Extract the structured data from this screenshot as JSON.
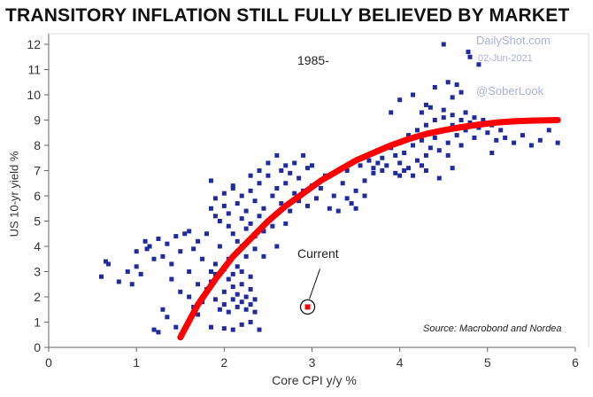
{
  "title": "TRANSITORY INFLATION STILL FULLY BELIEVED BY MARKET",
  "watermark": {
    "site": "DailyShot.com",
    "date": "02-Jun-2021",
    "handle": "@SoberLook"
  },
  "colors": {
    "points": "#1f2b9e",
    "curve": "#ff0000",
    "current": "#ff0000",
    "axis": "#666666"
  },
  "chart_data": {
    "type": "scatter",
    "xlabel": "Core CPI y/y %",
    "ylabel": "US 10-yr yield %",
    "xlim": [
      0,
      6
    ],
    "ylim": [
      0,
      12
    ],
    "x_ticks": [
      0,
      1,
      2,
      3,
      4,
      5,
      6
    ],
    "y_ticks": [
      0,
      1,
      2,
      3,
      4,
      5,
      6,
      7,
      8,
      9,
      10,
      11,
      12
    ],
    "grid": false,
    "period_label": "1985-",
    "source": "Source: Macrobond and Nordea",
    "current": {
      "label": "Current",
      "x": 2.95,
      "y": 1.6
    },
    "fit_curve": [
      [
        1.5,
        0.4
      ],
      [
        1.7,
        1.7
      ],
      [
        1.9,
        2.7
      ],
      [
        2.1,
        3.6
      ],
      [
        2.3,
        4.3
      ],
      [
        2.5,
        5.0
      ],
      [
        2.7,
        5.6
      ],
      [
        2.9,
        6.1
      ],
      [
        3.1,
        6.6
      ],
      [
        3.3,
        7.0
      ],
      [
        3.5,
        7.4
      ],
      [
        3.7,
        7.7
      ],
      [
        3.9,
        8.0
      ],
      [
        4.1,
        8.25
      ],
      [
        4.3,
        8.45
      ],
      [
        4.5,
        8.6
      ],
      [
        4.7,
        8.72
      ],
      [
        4.9,
        8.82
      ],
      [
        5.1,
        8.9
      ],
      [
        5.3,
        8.95
      ],
      [
        5.5,
        8.98
      ],
      [
        5.8,
        9.0
      ]
    ],
    "points": [
      [
        0.6,
        2.8
      ],
      [
        0.65,
        3.4
      ],
      [
        0.68,
        3.3
      ],
      [
        0.8,
        2.6
      ],
      [
        0.9,
        3.0
      ],
      [
        0.95,
        2.5
      ],
      [
        1.0,
        3.2
      ],
      [
        1.0,
        3.8
      ],
      [
        1.05,
        2.9
      ],
      [
        1.1,
        4.2
      ],
      [
        1.12,
        3.9
      ],
      [
        1.15,
        4.0
      ],
      [
        1.2,
        3.5
      ],
      [
        1.25,
        4.3
      ],
      [
        1.3,
        3.6
      ],
      [
        1.35,
        4.1
      ],
      [
        1.4,
        3.3
      ],
      [
        1.45,
        4.4
      ],
      [
        1.5,
        3.8
      ],
      [
        1.55,
        4.5
      ],
      [
        1.6,
        4.6
      ],
      [
        1.65,
        3.9
      ],
      [
        1.7,
        4.2
      ],
      [
        1.4,
        2.7
      ],
      [
        1.5,
        2.2
      ],
      [
        1.3,
        1.5
      ],
      [
        1.35,
        1.2
      ],
      [
        1.45,
        0.8
      ],
      [
        1.25,
        0.6
      ],
      [
        1.2,
        0.7
      ],
      [
        1.6,
        3.0
      ],
      [
        1.7,
        2.5
      ],
      [
        1.75,
        3.5
      ],
      [
        1.8,
        4.5
      ],
      [
        1.85,
        3.0
      ],
      [
        1.9,
        5.2
      ],
      [
        1.95,
        4.0
      ],
      [
        1.6,
        2.0
      ],
      [
        1.65,
        1.6
      ],
      [
        1.7,
        1.3
      ],
      [
        1.75,
        1.8
      ],
      [
        1.8,
        2.3
      ],
      [
        1.85,
        2.6
      ],
      [
        1.9,
        1.9
      ],
      [
        1.9,
        2.9
      ],
      [
        1.95,
        1.5
      ],
      [
        2.0,
        2.2
      ],
      [
        2.0,
        1.7
      ],
      [
        2.05,
        1.4
      ],
      [
        2.05,
        2.7
      ],
      [
        2.1,
        1.9
      ],
      [
        2.1,
        2.4
      ],
      [
        2.15,
        1.6
      ],
      [
        2.15,
        2.1
      ],
      [
        2.2,
        1.8
      ],
      [
        2.2,
        2.5
      ],
      [
        2.25,
        1.5
      ],
      [
        2.25,
        2.0
      ],
      [
        2.3,
        1.7
      ],
      [
        2.3,
        2.3
      ],
      [
        2.35,
        1.9
      ],
      [
        2.35,
        1.4
      ],
      [
        2.1,
        2.9
      ],
      [
        2.2,
        3.0
      ],
      [
        2.3,
        2.8
      ],
      [
        2.0,
        3.1
      ],
      [
        1.9,
        3.3
      ],
      [
        2.05,
        3.5
      ],
      [
        2.15,
        3.2
      ],
      [
        2.25,
        3.6
      ],
      [
        2.4,
        0.7
      ],
      [
        2.2,
        0.9
      ],
      [
        2.0,
        0.75
      ],
      [
        1.85,
        0.8
      ],
      [
        2.1,
        0.7
      ],
      [
        2.3,
        1.0
      ],
      [
        1.85,
        5.5
      ],
      [
        1.9,
        5.9
      ],
      [
        1.95,
        5.0
      ],
      [
        2.0,
        5.6
      ],
      [
        2.0,
        6.1
      ],
      [
        2.05,
        4.8
      ],
      [
        2.05,
        5.3
      ],
      [
        2.1,
        6.3
      ],
      [
        2.1,
        4.5
      ],
      [
        2.15,
        5.7
      ],
      [
        2.15,
        4.2
      ],
      [
        2.2,
        6.0
      ],
      [
        2.2,
        5.1
      ],
      [
        2.25,
        4.7
      ],
      [
        2.25,
        5.4
      ],
      [
        2.3,
        6.2
      ],
      [
        2.3,
        4.9
      ],
      [
        2.35,
        5.8
      ],
      [
        2.35,
        4.4
      ],
      [
        2.4,
        5.2
      ],
      [
        2.4,
        6.5
      ],
      [
        2.45,
        4.6
      ],
      [
        2.45,
        5.5
      ],
      [
        2.5,
        6.8
      ],
      [
        2.5,
        5.0
      ],
      [
        2.55,
        6.0
      ],
      [
        2.55,
        4.8
      ],
      [
        2.6,
        6.3
      ],
      [
        2.6,
        5.3
      ],
      [
        2.65,
        7.0
      ],
      [
        2.65,
        5.7
      ],
      [
        2.7,
        6.5
      ],
      [
        2.7,
        4.9
      ],
      [
        2.75,
        6.9
      ],
      [
        2.75,
        5.4
      ],
      [
        2.8,
        6.1
      ],
      [
        2.8,
        7.3
      ],
      [
        2.85,
        5.8
      ],
      [
        2.85,
        6.7
      ],
      [
        2.9,
        7.6
      ],
      [
        2.9,
        6.2
      ],
      [
        2.95,
        7.1
      ],
      [
        2.95,
        5.6
      ],
      [
        3.0,
        7.2
      ],
      [
        3.0,
        6.4
      ],
      [
        2.6,
        7.6
      ],
      [
        2.7,
        7.2
      ],
      [
        2.5,
        7.3
      ],
      [
        2.4,
        7.0
      ],
      [
        2.3,
        6.8
      ],
      [
        1.85,
        6.6
      ],
      [
        2.1,
        6.4
      ],
      [
        2.2,
        4.0
      ],
      [
        2.35,
        3.9
      ],
      [
        2.45,
        3.6
      ],
      [
        2.6,
        4.0
      ],
      [
        3.05,
        5.9
      ],
      [
        3.1,
        6.3
      ],
      [
        3.15,
        6.8
      ],
      [
        3.2,
        5.5
      ],
      [
        3.25,
        6.0
      ],
      [
        3.3,
        5.4
      ],
      [
        3.35,
        6.5
      ],
      [
        3.4,
        7.0
      ],
      [
        3.45,
        5.7
      ],
      [
        3.5,
        6.2
      ],
      [
        3.55,
        7.2
      ],
      [
        3.6,
        6.6
      ],
      [
        3.65,
        7.4
      ],
      [
        3.7,
        7.1
      ],
      [
        3.75,
        7.8
      ],
      [
        3.8,
        7.5
      ],
      [
        3.85,
        7.2
      ],
      [
        3.9,
        7.9
      ],
      [
        3.95,
        7.6
      ],
      [
        4.0,
        8.1
      ],
      [
        4.0,
        7.3
      ],
      [
        4.05,
        7.7
      ],
      [
        4.1,
        8.4
      ],
      [
        4.1,
        7.1
      ],
      [
        4.15,
        8.0
      ],
      [
        4.2,
        8.6
      ],
      [
        4.2,
        7.4
      ],
      [
        4.25,
        8.2
      ],
      [
        4.3,
        8.8
      ],
      [
        4.3,
        7.6
      ],
      [
        4.35,
        8.5
      ],
      [
        4.35,
        7.9
      ],
      [
        4.4,
        9.0
      ],
      [
        4.4,
        8.3
      ],
      [
        4.45,
        7.8
      ],
      [
        4.5,
        8.6
      ],
      [
        4.5,
        9.1
      ],
      [
        4.55,
        8.1
      ],
      [
        4.6,
        8.8
      ],
      [
        4.6,
        9.2
      ],
      [
        4.65,
        8.4
      ],
      [
        4.7,
        9.0
      ],
      [
        4.7,
        8.0
      ],
      [
        4.75,
        9.3
      ],
      [
        4.75,
        8.6
      ],
      [
        4.8,
        8.9
      ],
      [
        4.85,
        9.1
      ],
      [
        4.85,
        8.3
      ],
      [
        4.9,
        8.7
      ],
      [
        4.95,
        9.0
      ],
      [
        5.0,
        8.5
      ],
      [
        5.05,
        8.8
      ],
      [
        5.1,
        8.2
      ],
      [
        5.15,
        8.6
      ],
      [
        5.2,
        8.3
      ],
      [
        5.3,
        8.1
      ],
      [
        5.4,
        8.4
      ],
      [
        5.5,
        8.0
      ],
      [
        5.6,
        8.2
      ],
      [
        5.7,
        8.6
      ],
      [
        5.8,
        8.1
      ],
      [
        3.9,
        9.3
      ],
      [
        4.0,
        9.8
      ],
      [
        4.15,
        10.0
      ],
      [
        4.3,
        9.6
      ],
      [
        4.4,
        10.3
      ],
      [
        4.5,
        9.4
      ],
      [
        4.6,
        9.9
      ],
      [
        4.7,
        10.1
      ],
      [
        4.25,
        9.3
      ],
      [
        4.35,
        9.5
      ],
      [
        4.55,
        10.5
      ],
      [
        4.65,
        10.4
      ],
      [
        4.8,
        11.5
      ],
      [
        4.78,
        11.7
      ],
      [
        4.9,
        11.2
      ],
      [
        4.5,
        12.0
      ],
      [
        4.45,
        6.7
      ],
      [
        4.3,
        7.0
      ],
      [
        4.0,
        6.8
      ],
      [
        3.7,
        6.9
      ],
      [
        3.6,
        6.0
      ],
      [
        3.4,
        5.9
      ],
      [
        3.5,
        5.5
      ],
      [
        3.8,
        7.0
      ],
      [
        3.95,
        6.9
      ],
      [
        3.75,
        7.3
      ],
      [
        4.6,
        7.1
      ],
      [
        5.05,
        7.7
      ],
      [
        4.55,
        7.6
      ],
      [
        4.25,
        7.2
      ],
      [
        4.15,
        6.8
      ],
      [
        4.05,
        7.0
      ]
    ]
  }
}
